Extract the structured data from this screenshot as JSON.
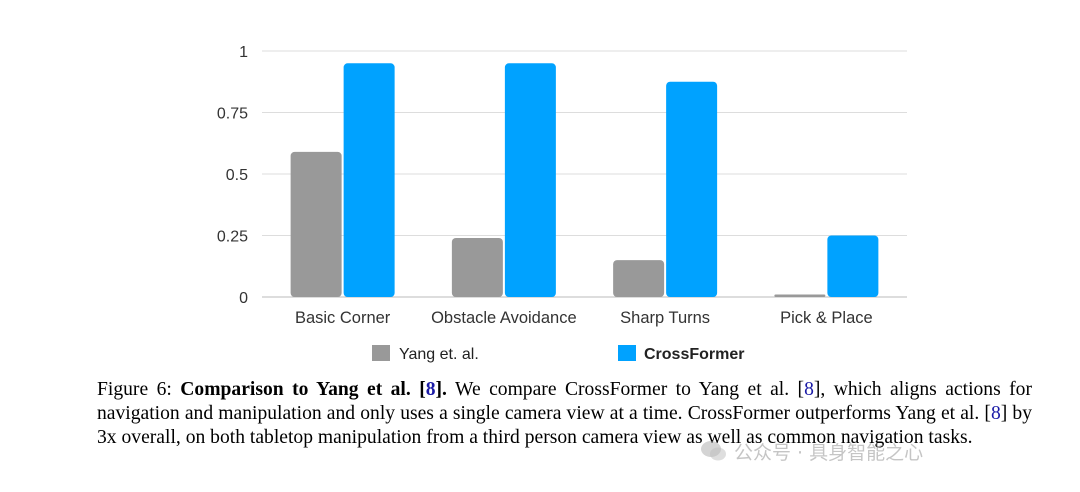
{
  "chart_data": {
    "type": "bar",
    "categories": [
      "Basic Corner",
      "Obstacle Avoidance",
      "Sharp Turns",
      "Pick & Place"
    ],
    "series": [
      {
        "name": "Yang et. al.",
        "values": [
          0.59,
          0.24,
          0.15,
          0.01
        ],
        "color": "#999999"
      },
      {
        "name": "CrossFormer",
        "values": [
          0.95,
          0.95,
          0.875,
          0.25
        ],
        "color": "#00a2ff"
      }
    ],
    "yticks": [
      "0",
      "0.25",
      "0.5",
      "0.75",
      "1"
    ],
    "ylim": [
      0,
      1
    ],
    "grid": true,
    "legend": "bottom"
  },
  "caption": {
    "prefix": "Figure 6: ",
    "bold_title": "Comparison to Yang et al. [",
    "bold_ref": "8",
    "bold_end": "].",
    "t1": " We compare CrossFormer to Yang et al. [",
    "ref1": "8",
    "t2": "], which aligns actions for navigation and manipulation and only uses a single camera view at a time. CrossFormer outperforms Yang et al. [",
    "ref2": "8",
    "t3": "] by 3x overall, on both tabletop manipulation from a third person camera view as well as common navigation tasks."
  },
  "watermark": {
    "text": "公众号 · 具身智能之心",
    "icon": "wechat-icon"
  }
}
